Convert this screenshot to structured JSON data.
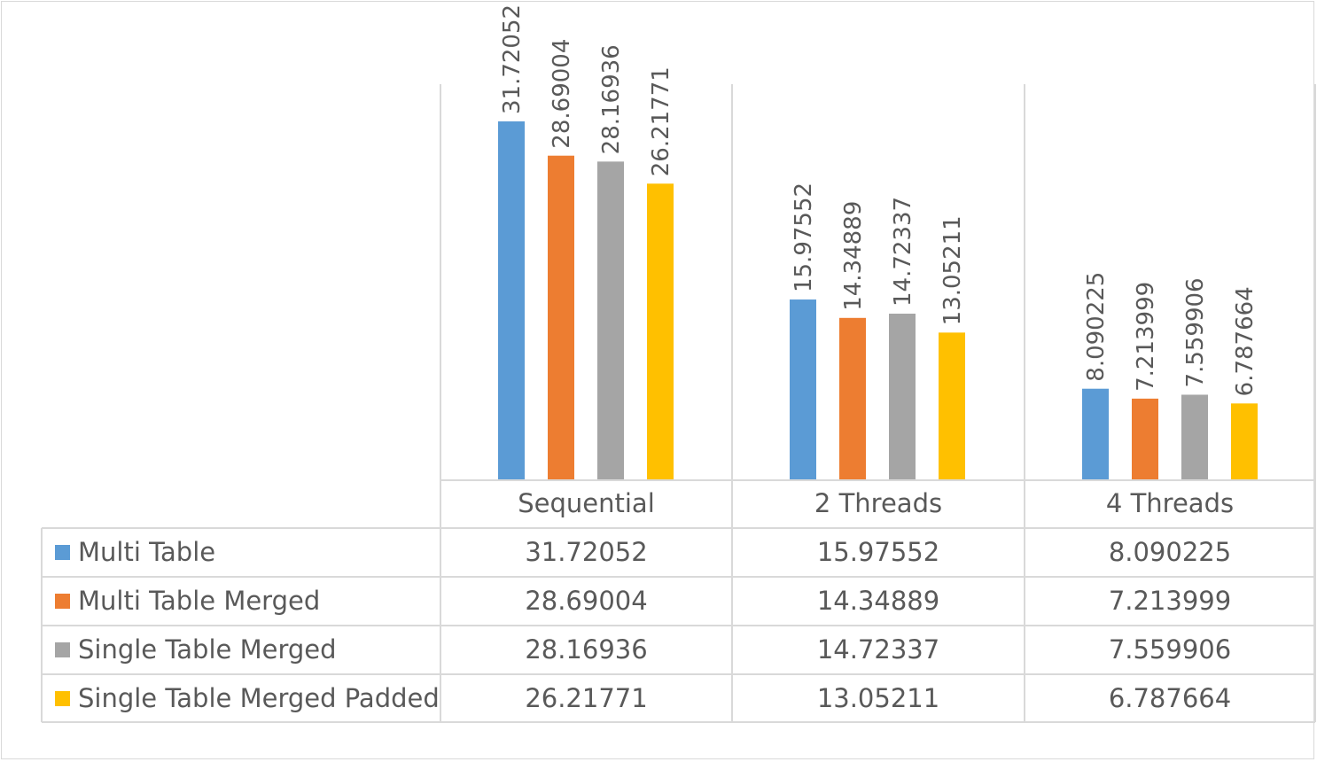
{
  "chart_data": {
    "type": "bar",
    "title": "",
    "xlabel": "",
    "ylabel": "",
    "categories": [
      "Sequential",
      "2 Threads",
      "4 Threads"
    ],
    "series": [
      {
        "name": "Multi Table",
        "color": "#5b9bd5",
        "values": [
          31.72052,
          15.97552,
          8.090225
        ],
        "labels": [
          "31.72052",
          "15.97552",
          "8.090225"
        ]
      },
      {
        "name": "Multi Table Merged",
        "color": "#ed7d31",
        "values": [
          28.69004,
          14.34889,
          7.213999
        ],
        "labels": [
          "28.69004",
          "14.34889",
          "7.213999"
        ]
      },
      {
        "name": "Single Table Merged",
        "color": "#a5a5a5",
        "values": [
          28.16936,
          14.72337,
          7.559906
        ],
        "labels": [
          "28.16936",
          "14.72337",
          "7.559906"
        ]
      },
      {
        "name": "Single Table Merged Padded",
        "color": "#ffc000",
        "values": [
          26.21771,
          13.05211,
          6.787664
        ],
        "labels": [
          "26.21771",
          "13.05211",
          "6.787664"
        ]
      }
    ],
    "ylim": [
      0,
      35
    ],
    "grid": false,
    "legend": "data-table",
    "data_table": true
  }
}
